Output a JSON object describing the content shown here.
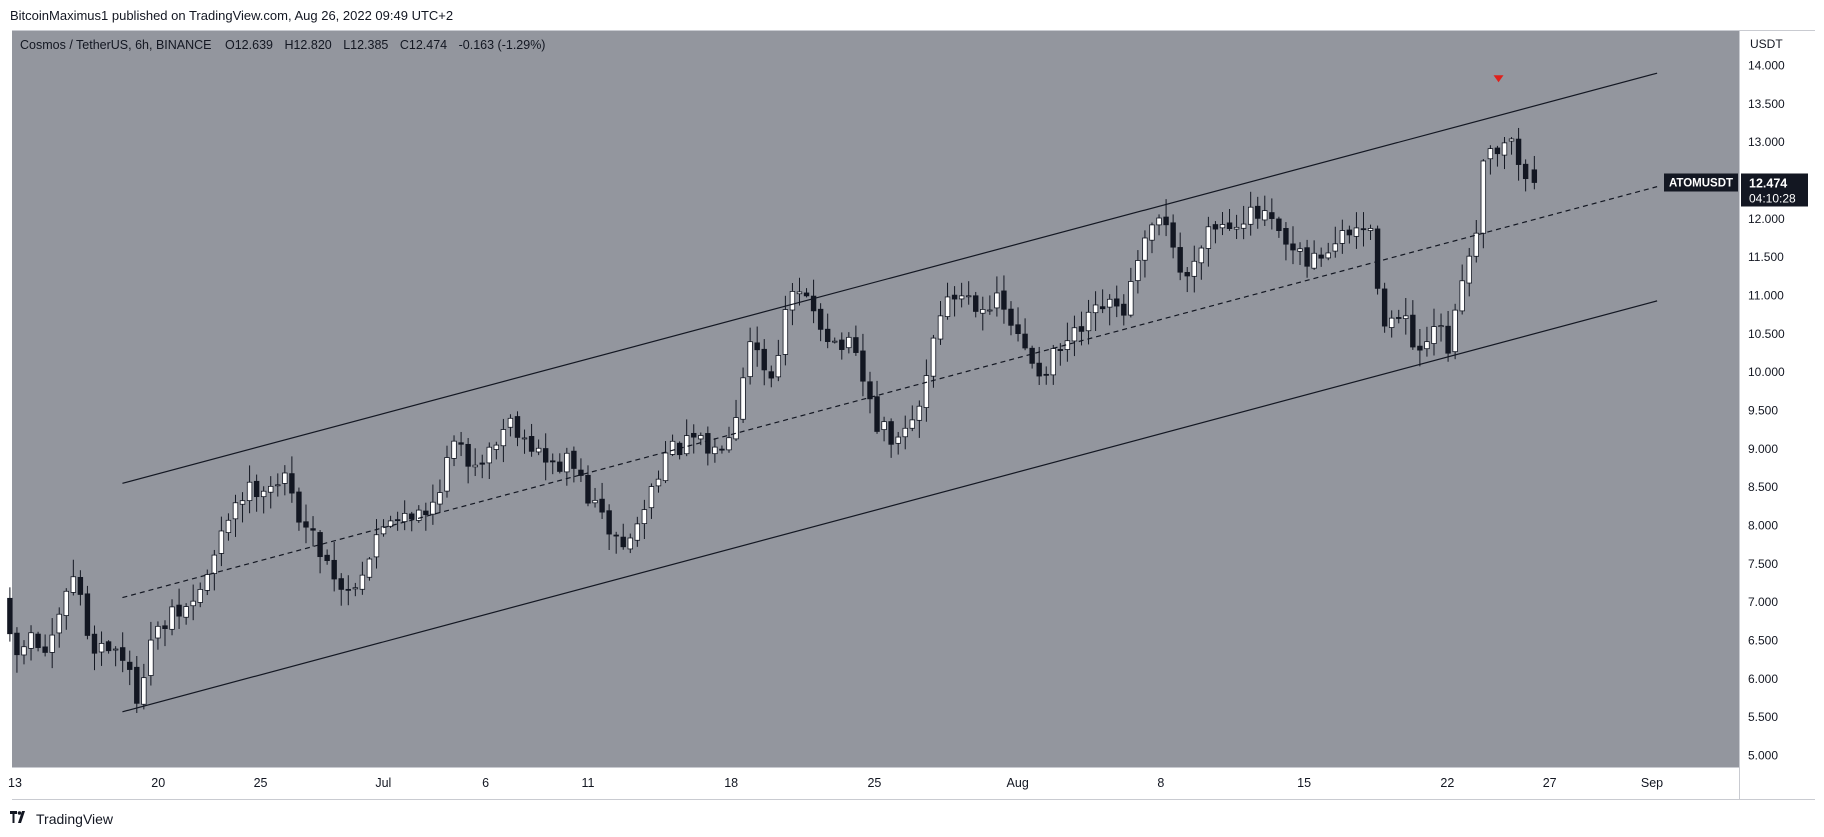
{
  "publish_info": "BitcoinMaximus1 published on TradingView.com, Aug 26, 2022 09:49 UTC+2",
  "legend": {
    "symbol": "Cosmos / TetherUS, 6h, BINANCE",
    "open_label": "O",
    "open": "12.639",
    "high_label": "H",
    "high": "12.820",
    "low_label": "L",
    "low": "12.385",
    "close_label": "C",
    "close": "12.474",
    "change": "-0.163 (-1.29%)"
  },
  "footer": {
    "brand": "TradingView",
    "logo_icon": "tradingview-logo-icon"
  },
  "colors": {
    "plot_bg": "#93969e",
    "axis_bg": "#ffffff",
    "candle_up": "#ffffff",
    "candle_down": "#131722",
    "channel_line": "#131722",
    "marker": "#e0201b",
    "price_tag_bg": "#131722"
  },
  "chart_data": {
    "type": "candlestick",
    "symbol": "ATOMUSDT",
    "interval": "6h",
    "exchange": "BINANCE",
    "y_axis_unit": "USDT",
    "y_ticks": [
      14,
      13.5,
      13,
      12.5,
      12,
      11.5,
      11,
      10.5,
      10,
      9.5,
      9,
      8.5,
      8,
      7.5,
      7,
      6.5,
      6,
      5.5,
      5
    ],
    "y_tick_labels": [
      "14.000",
      "13.500",
      "13.000",
      "12.500",
      "12.000",
      "11.500",
      "11.000",
      "10.500",
      "10.000",
      "9.500",
      "9.000",
      "8.500",
      "8.000",
      "7.500",
      "7.000",
      "6.500",
      "6.000",
      "5.500",
      "5.000"
    ],
    "ylim": [
      4.85,
      14.45
    ],
    "x_ticks": [
      {
        "date": "2022-06-13",
        "label": "13"
      },
      {
        "date": "2022-06-20",
        "label": "20"
      },
      {
        "date": "2022-06-25",
        "label": "25"
      },
      {
        "date": "2022-07-01",
        "label": "Jul"
      },
      {
        "date": "2022-07-06",
        "label": "6"
      },
      {
        "date": "2022-07-11",
        "label": "11"
      },
      {
        "date": "2022-07-18",
        "label": "18"
      },
      {
        "date": "2022-07-25",
        "label": "25"
      },
      {
        "date": "2022-08-01",
        "label": "Aug"
      },
      {
        "date": "2022-08-08",
        "label": "8"
      },
      {
        "date": "2022-08-15",
        "label": "15"
      },
      {
        "date": "2022-08-22",
        "label": "22"
      },
      {
        "date": "2022-08-27",
        "label": "27"
      },
      {
        "date": "2022-09-01",
        "label": "Sep"
      }
    ],
    "price_path": [
      {
        "date": "2022-06-12T18:00",
        "price": 7.05
      },
      {
        "date": "2022-06-13T06:00",
        "price": 6.2
      },
      {
        "date": "2022-06-14T00:00",
        "price": 6.55
      },
      {
        "date": "2022-06-15T00:00",
        "price": 6.3
      },
      {
        "date": "2022-06-16T06:00",
        "price": 7.4
      },
      {
        "date": "2022-06-17T00:00",
        "price": 6.45
      },
      {
        "date": "2022-06-18T12:00",
        "price": 6.4
      },
      {
        "date": "2022-06-19T06:00",
        "price": 5.75
      },
      {
        "date": "2022-06-20T00:00",
        "price": 6.5
      },
      {
        "date": "2022-06-21T00:00",
        "price": 6.8
      },
      {
        "date": "2022-06-22T00:00",
        "price": 6.95
      },
      {
        "date": "2022-06-23T00:00",
        "price": 7.5
      },
      {
        "date": "2022-06-24T00:00",
        "price": 8.3
      },
      {
        "date": "2022-06-25T00:00",
        "price": 8.5
      },
      {
        "date": "2022-06-26T12:00",
        "price": 8.6
      },
      {
        "date": "2022-06-27T12:00",
        "price": 8.0
      },
      {
        "date": "2022-06-28T12:00",
        "price": 7.6
      },
      {
        "date": "2022-06-29T12:00",
        "price": 7.1
      },
      {
        "date": "2022-06-30T12:00",
        "price": 7.5
      },
      {
        "date": "2022-07-01T12:00",
        "price": 8.1
      },
      {
        "date": "2022-07-02T12:00",
        "price": 8.2
      },
      {
        "date": "2022-07-03T12:00",
        "price": 8.1
      },
      {
        "date": "2022-07-04T18:00",
        "price": 9.05
      },
      {
        "date": "2022-07-05T12:00",
        "price": 8.85
      },
      {
        "date": "2022-07-06T12:00",
        "price": 8.95
      },
      {
        "date": "2022-07-07T12:00",
        "price": 9.4
      },
      {
        "date": "2022-07-08T12:00",
        "price": 9.1
      },
      {
        "date": "2022-07-09T12:00",
        "price": 8.75
      },
      {
        "date": "2022-07-10T12:00",
        "price": 8.85
      },
      {
        "date": "2022-07-11T12:00",
        "price": 8.3
      },
      {
        "date": "2022-07-12T12:00",
        "price": 7.9
      },
      {
        "date": "2022-07-13T06:00",
        "price": 7.7
      },
      {
        "date": "2022-07-14T00:00",
        "price": 8.15
      },
      {
        "date": "2022-07-15T00:00",
        "price": 8.9
      },
      {
        "date": "2022-07-16T12:00",
        "price": 9.1
      },
      {
        "date": "2022-07-17T12:00",
        "price": 8.95
      },
      {
        "date": "2022-07-18T12:00",
        "price": 9.4
      },
      {
        "date": "2022-07-19T06:00",
        "price": 10.5
      },
      {
        "date": "2022-07-20T06:00",
        "price": 9.9
      },
      {
        "date": "2022-07-21T06:00",
        "price": 11.0
      },
      {
        "date": "2022-07-22T06:00",
        "price": 10.9
      },
      {
        "date": "2022-07-23T06:00",
        "price": 10.4
      },
      {
        "date": "2022-07-24T06:00",
        "price": 10.3
      },
      {
        "date": "2022-07-25T12:00",
        "price": 9.3
      },
      {
        "date": "2022-07-26T12:00",
        "price": 9.05
      },
      {
        "date": "2022-07-27T12:00",
        "price": 9.5
      },
      {
        "date": "2022-07-28T12:00",
        "price": 10.8
      },
      {
        "date": "2022-07-29T12:00",
        "price": 11.05
      },
      {
        "date": "2022-07-30T12:00",
        "price": 10.9
      },
      {
        "date": "2022-07-31T12:00",
        "price": 10.9
      },
      {
        "date": "2022-08-01T12:00",
        "price": 10.35
      },
      {
        "date": "2022-08-02T12:00",
        "price": 10.0
      },
      {
        "date": "2022-08-03T12:00",
        "price": 10.3
      },
      {
        "date": "2022-08-04T12:00",
        "price": 10.55
      },
      {
        "date": "2022-08-05T12:00",
        "price": 10.85
      },
      {
        "date": "2022-08-06T12:00",
        "price": 10.8
      },
      {
        "date": "2022-08-07T12:00",
        "price": 11.6
      },
      {
        "date": "2022-08-08T12:00",
        "price": 12.1
      },
      {
        "date": "2022-08-09T12:00",
        "price": 11.1
      },
      {
        "date": "2022-08-10T12:00",
        "price": 11.9
      },
      {
        "date": "2022-08-11T12:00",
        "price": 11.95
      },
      {
        "date": "2022-08-12T12:00",
        "price": 12.05
      },
      {
        "date": "2022-08-13T12:00",
        "price": 12.0
      },
      {
        "date": "2022-08-14T12:00",
        "price": 11.6
      },
      {
        "date": "2022-08-15T12:00",
        "price": 11.4
      },
      {
        "date": "2022-08-16T12:00",
        "price": 11.6
      },
      {
        "date": "2022-08-17T12:00",
        "price": 11.8
      },
      {
        "date": "2022-08-18T12:00",
        "price": 11.9
      },
      {
        "date": "2022-08-19T06:00",
        "price": 10.7
      },
      {
        "date": "2022-08-20T06:00",
        "price": 10.65
      },
      {
        "date": "2022-08-21T00:00",
        "price": 10.15
      },
      {
        "date": "2022-08-21T18:00",
        "price": 10.6
      },
      {
        "date": "2022-08-22T12:00",
        "price": 10.25
      },
      {
        "date": "2022-08-23T00:00",
        "price": 11.2
      },
      {
        "date": "2022-08-23T18:00",
        "price": 11.9
      },
      {
        "date": "2022-08-24T06:00",
        "price": 13.1
      },
      {
        "date": "2022-08-24T18:00",
        "price": 12.9
      },
      {
        "date": "2022-08-25T06:00",
        "price": 13.1
      },
      {
        "date": "2022-08-25T18:00",
        "price": 12.8
      },
      {
        "date": "2022-08-26T06:00",
        "price": 12.474
      }
    ],
    "last_candle": {
      "date": "2022-08-26T06:00",
      "open": 12.639,
      "high": 12.82,
      "low": 12.385,
      "close": 12.474
    },
    "annotations": {
      "channel_upper": [
        {
          "date": "2022-06-18T06:00",
          "price": 8.55
        },
        {
          "date": "2022-09-01T06:00",
          "price": 13.9
        }
      ],
      "channel_middle": [
        {
          "date": "2022-06-18T06:00",
          "price": 7.06
        },
        {
          "date": "2022-09-01T06:00",
          "price": 12.42
        }
      ],
      "channel_lower": [
        {
          "date": "2022-06-18T06:00",
          "price": 5.57
        },
        {
          "date": "2022-09-01T06:00",
          "price": 10.93
        }
      ],
      "top_marker": {
        "date": "2022-08-24T12:00",
        "price": 13.82
      }
    },
    "price_label": {
      "symbol": "ATOMUSDT",
      "price": "12.474",
      "countdown": "04:10:28"
    }
  }
}
